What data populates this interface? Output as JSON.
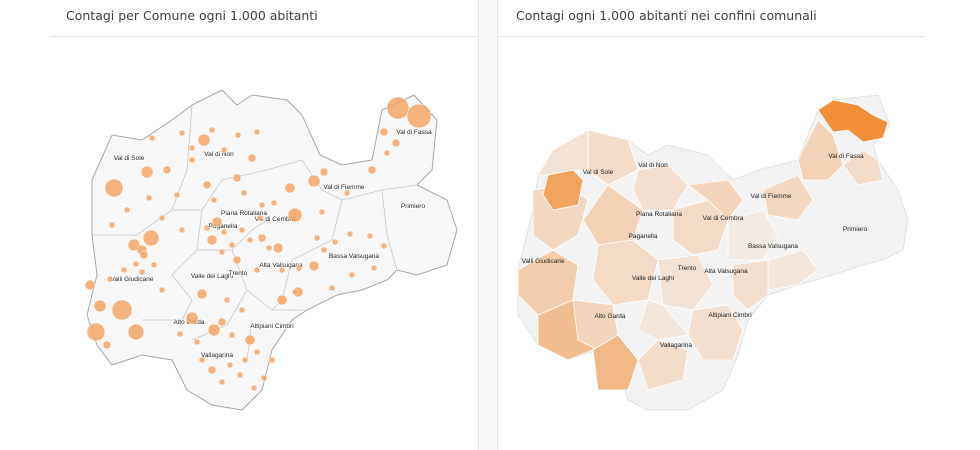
{
  "left_panel": {
    "title": "Contagi per Comune ogni 1.000 abitanti",
    "accent_color": "#f4a261",
    "labels": [
      "Val di Sole",
      "Val di Non",
      "Val di Fassa",
      "Val di Fiemme",
      "Piana Rotaliana",
      "Paganella",
      "Val di Cembra",
      "Primiero",
      "Valli Giudicarie",
      "Valle dei Laghi",
      "Trento",
      "Alta Valsugana",
      "Bassa Valsugana",
      "Alto Garda",
      "Altipiani Cimbri",
      "Vallagarina"
    ]
  },
  "right_panel": {
    "title": "Contagi ogni 1.000 abitanti nei confini comunali",
    "color_low": "#f2f2f2",
    "color_high": "#f28a2e",
    "labels": [
      "Val di Fassa",
      "Val di Non",
      "Val di Sole",
      "Val di Fiemme",
      "Piana Rotaliana",
      "Val di Cembra",
      "Primiero",
      "Paganella",
      "Bassa Valsugana",
      "Valli Giudicarie",
      "Trento",
      "Valle dei Laghi",
      "Alta Valsugana",
      "Alto Garda",
      "Altipiani Cimbri",
      "Vallagarina"
    ]
  }
}
